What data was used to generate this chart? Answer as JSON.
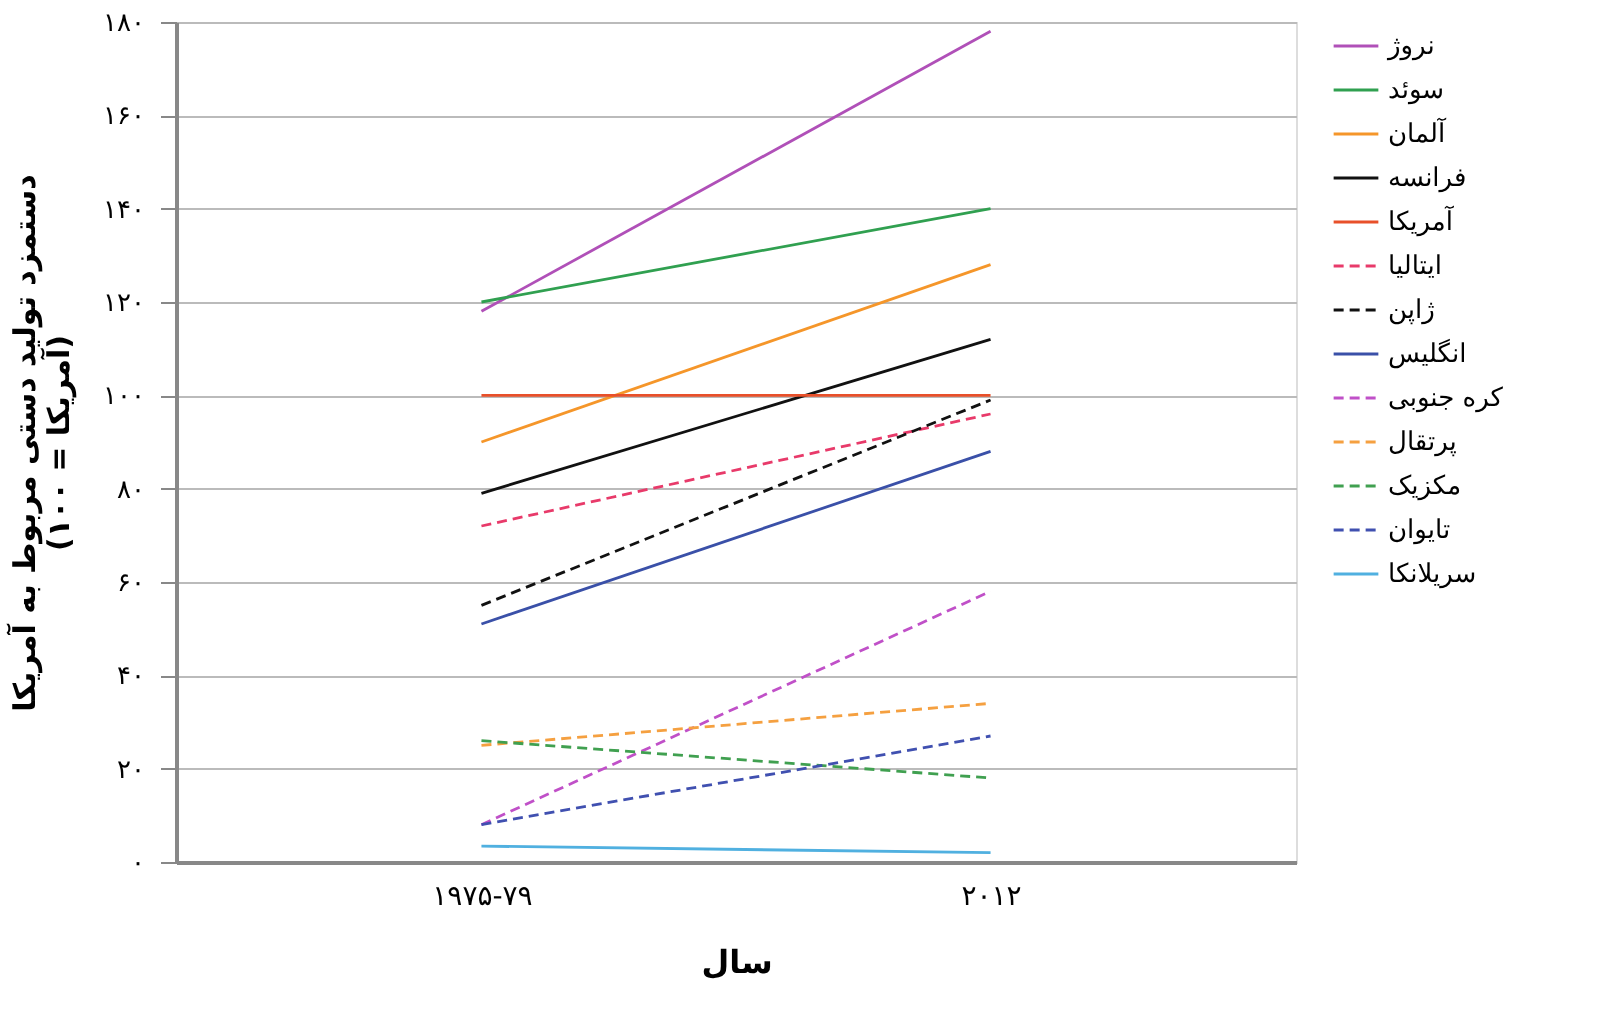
{
  "chart_data": {
    "type": "line",
    "xlabel": "سال",
    "ylabel": "دستمزد تولید دستی مربوط به آمریکا\n(آمریکا = ۱۰۰)",
    "categories": [
      "۱۹۷۵-۷۹",
      "۲۰۱۲"
    ],
    "ylim": [
      0,
      180
    ],
    "yticks": [
      {
        "value": 0,
        "label": "۰"
      },
      {
        "value": 20,
        "label": "۲۰"
      },
      {
        "value": 40,
        "label": "۴۰"
      },
      {
        "value": 60,
        "label": "۶۰"
      },
      {
        "value": 80,
        "label": "۸۰"
      },
      {
        "value": 100,
        "label": "۱۰۰"
      },
      {
        "value": 120,
        "label": "۱۲۰"
      },
      {
        "value": 140,
        "label": "۱۴۰"
      },
      {
        "value": 160,
        "label": "۱۶۰"
      },
      {
        "value": 180,
        "label": "۱۸۰"
      }
    ],
    "grid": "y",
    "legend": "right",
    "marker": "none",
    "series": [
      {
        "name": "نروژ",
        "color": "#b050b8",
        "line_style": "solid",
        "values": [
          118,
          178
        ]
      },
      {
        "name": "سوئد",
        "color": "#30a050",
        "line_style": "solid",
        "values": [
          120,
          140
        ]
      },
      {
        "name": "آلمان",
        "color": "#f5962a",
        "line_style": "solid",
        "values": [
          90,
          128
        ]
      },
      {
        "name": "فرانسه",
        "color": "#111111",
        "line_style": "solid",
        "values": [
          79,
          112
        ]
      },
      {
        "name": "آمریکا",
        "color": "#e8502a",
        "line_style": "solid",
        "values": [
          100,
          100
        ]
      },
      {
        "name": "ایتالیا",
        "color": "#e83a6a",
        "line_style": "dashed",
        "values": [
          72,
          96
        ]
      },
      {
        "name": "ژاپن",
        "color": "#111111",
        "line_style": "dashed",
        "values": [
          55,
          99
        ]
      },
      {
        "name": "انگلیس",
        "color": "#3a50a8",
        "line_style": "solid",
        "values": [
          51,
          88
        ]
      },
      {
        "name": "کره جنوبی",
        "color": "#c050c8",
        "line_style": "dashed",
        "values": [
          8,
          58
        ]
      },
      {
        "name": "پرتقال",
        "color": "#f5a040",
        "line_style": "dashed",
        "values": [
          25,
          34
        ]
      },
      {
        "name": "مکزیک",
        "color": "#40a050",
        "line_style": "dashed",
        "values": [
          26,
          18
        ]
      },
      {
        "name": "تایوان",
        "color": "#4050b0",
        "line_style": "dashed",
        "values": [
          8,
          27
        ]
      },
      {
        "name": "سریلانکا",
        "color": "#50b0e0",
        "line_style": "solid",
        "values": [
          3.4,
          2
        ]
      }
    ]
  }
}
